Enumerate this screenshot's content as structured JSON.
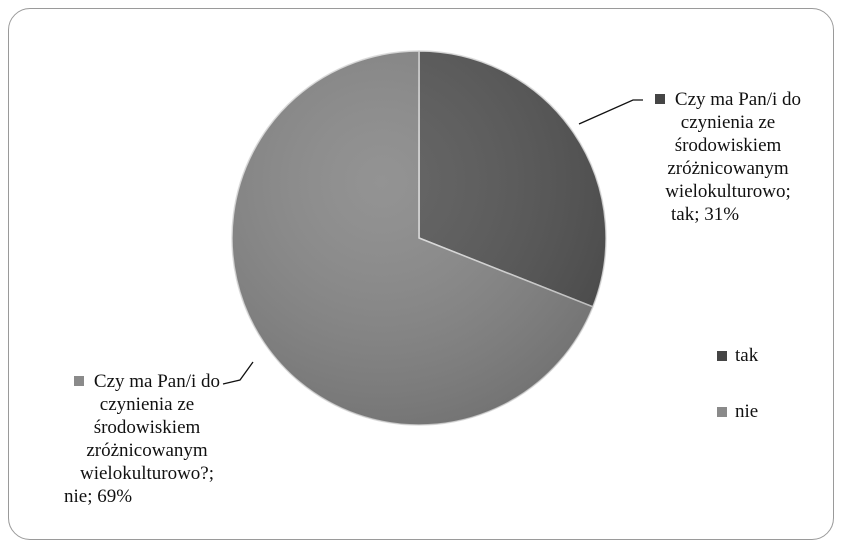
{
  "chart_data": {
    "type": "pie",
    "slices": [
      {
        "category": "tak",
        "value": 31,
        "value_label": "31%",
        "label_lines": [
          "Czy ma Pan/i do",
          "czynienia ze",
          "środowiskiem",
          "zróżnicowanym",
          "wielokulturowo;",
          "tak; 31%"
        ],
        "color": "#555555"
      },
      {
        "category": "nie",
        "value": 69,
        "value_label": "69%",
        "label_lines": [
          "Czy ma Pan/i do",
          "czynienia ze",
          "środowiskiem",
          "zróżnicowanym",
          "wielokulturowo?;",
          "nie; 69%"
        ],
        "color": "#878787"
      }
    ],
    "legend": {
      "placement": "right",
      "items": [
        {
          "label": "tak",
          "color": "#454545"
        },
        {
          "label": "nie",
          "color": "#8a8a8a"
        }
      ]
    }
  }
}
